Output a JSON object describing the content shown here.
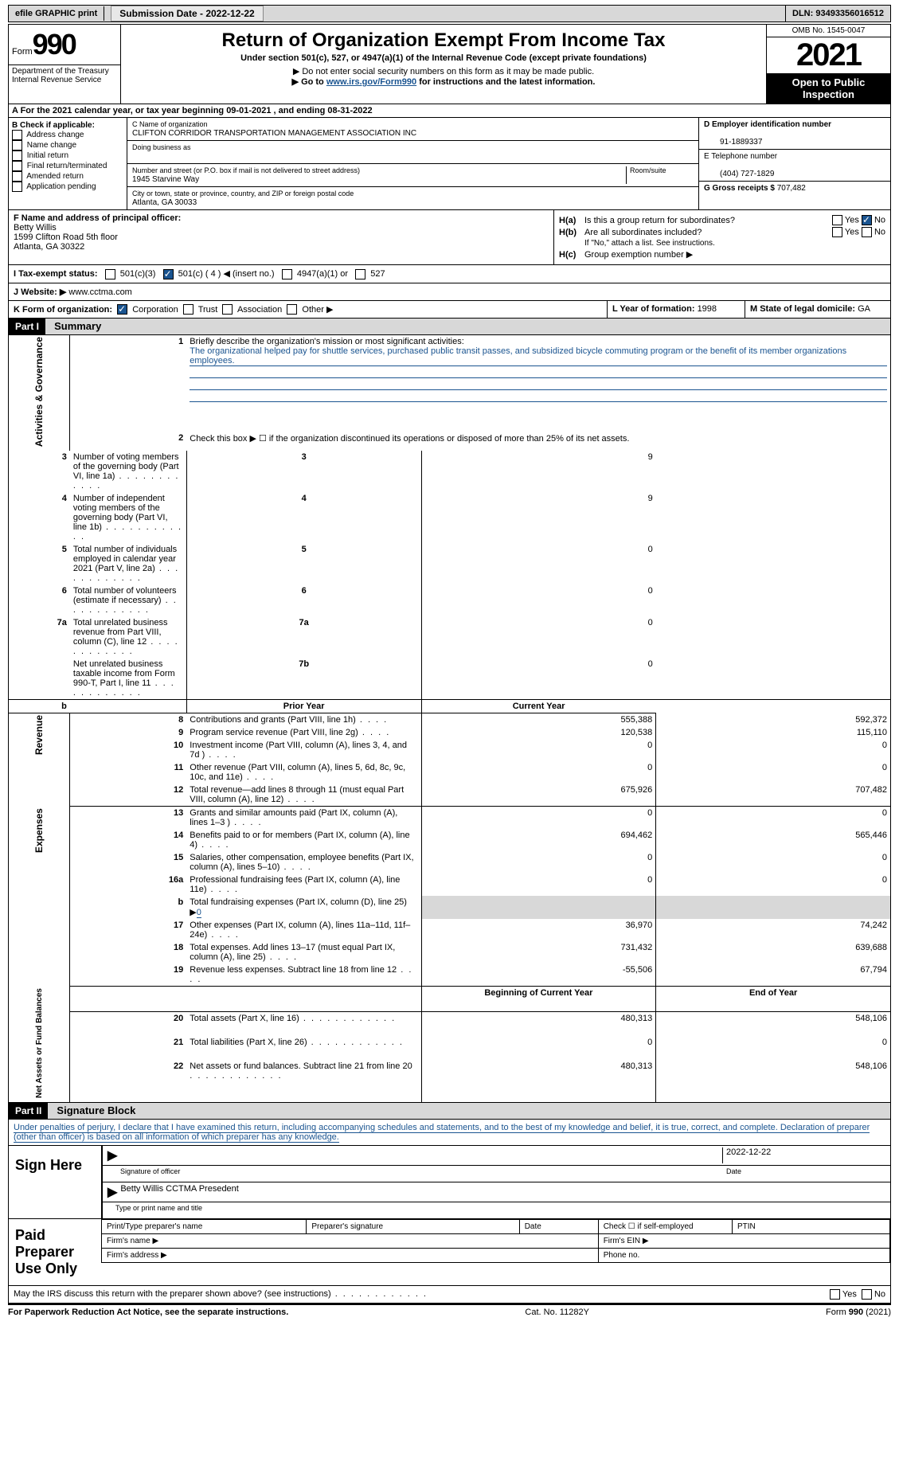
{
  "topbar": {
    "efile": "efile GRAPHIC print",
    "submission_label": "Submission Date - ",
    "submission_date": "2022-12-22",
    "dln_label": "DLN: ",
    "dln": "93493356016512"
  },
  "header": {
    "form_label": "Form",
    "form_num": "990",
    "title": "Return of Organization Exempt From Income Tax",
    "subtitle": "Under section 501(c), 527, or 4947(a)(1) of the Internal Revenue Code (except private foundations)",
    "note1": "▶ Do not enter social security numbers on this form as it may be made public.",
    "note2_pre": "▶ Go to ",
    "note2_link": "www.irs.gov/Form990",
    "note2_post": " for instructions and the latest information.",
    "dept": "Department of the Treasury\nInternal Revenue Service",
    "omb": "OMB No. 1545-0047",
    "year": "2021",
    "open": "Open to Public Inspection"
  },
  "row_a": "A  For the 2021 calendar year, or tax year beginning 09-01-2021    , and ending 08-31-2022",
  "col_b": {
    "header": "B Check if applicable:",
    "items": [
      "Address change",
      "Name change",
      "Initial return",
      "Final return/terminated",
      "Amended return",
      "Application pending"
    ]
  },
  "col_c": {
    "name_label": "C Name of organization",
    "name": "CLIFTON CORRIDOR TRANSPORTATION MANAGEMENT ASSOCIATION INC",
    "dba_label": "Doing business as",
    "addr_label": "Number and street (or P.O. box if mail is not delivered to street address)",
    "room_label": "Room/suite",
    "addr": "1945 Starvine Way",
    "city_label": "City or town, state or province, country, and ZIP or foreign postal code",
    "city": "Atlanta, GA   30033"
  },
  "col_d": {
    "ein_label": "D Employer identification number",
    "ein": "91-1889337",
    "phone_label": "E Telephone number",
    "phone": "(404) 727-1829",
    "gross_label": "G Gross receipts $ ",
    "gross": "707,482"
  },
  "row_f": {
    "label": "F  Name and address of principal officer:",
    "name": "Betty Willis",
    "addr1": "1599 Clifton Road 5th floor",
    "addr2": "Atlanta, GA  30322"
  },
  "row_h": {
    "ha": "Is this a group return for subordinates?",
    "hb": "Are all subordinates included?",
    "hb_note": "If \"No,\" attach a list. See instructions.",
    "hc": "Group exemption number ▶"
  },
  "row_i": {
    "label": "I   Tax-exempt status:",
    "opts": [
      "501(c)(3)",
      "501(c) ( 4 ) ◀ (insert no.)",
      "4947(a)(1) or",
      "527"
    ]
  },
  "row_j": {
    "label": "J   Website: ▶  ",
    "value": "www.cctma.com"
  },
  "row_k": {
    "label": "K Form of organization:",
    "opts": [
      "Corporation",
      "Trust",
      "Association",
      "Other ▶"
    ],
    "l_label": "L Year of formation: ",
    "l_val": "1998",
    "m_label": "M State of legal domicile: ",
    "m_val": "GA"
  },
  "parts": {
    "p1": {
      "num": "Part I",
      "title": "Summary"
    },
    "p2": {
      "num": "Part II",
      "title": "Signature Block"
    }
  },
  "summary": {
    "sections": [
      {
        "label": "Activities & Governance"
      },
      {
        "label": "Revenue"
      },
      {
        "label": "Expenses"
      },
      {
        "label": "Net Assets or Fund Balances"
      }
    ],
    "line1_label": "Briefly describe the organization's mission or most significant activities:",
    "line1_text": "The organizational helped pay for shuttle services, purchased public transit passes, and subsidized bicycle commuting program or the benefit of its member organizations employees.",
    "line2": "Check this box ▶ ☐  if the organization discontinued its operations or disposed of more than 25% of its net assets.",
    "rows_gov": [
      {
        "n": "3",
        "t": "Number of voting members of the governing body (Part VI, line 1a)",
        "box": "3",
        "v": "9"
      },
      {
        "n": "4",
        "t": "Number of independent voting members of the governing body (Part VI, line 1b)",
        "box": "4",
        "v": "9"
      },
      {
        "n": "5",
        "t": "Total number of individuals employed in calendar year 2021 (Part V, line 2a)",
        "box": "5",
        "v": "0"
      },
      {
        "n": "6",
        "t": "Total number of volunteers (estimate if necessary)",
        "box": "6",
        "v": "0"
      },
      {
        "n": "7a",
        "t": "Total unrelated business revenue from Part VIII, column (C), line 12",
        "box": "7a",
        "v": "0"
      },
      {
        "n": "",
        "t": "Net unrelated business taxable income from Form 990-T, Part I, line 11",
        "box": "7b",
        "v": "0"
      }
    ],
    "col_hdrs": {
      "prior": "Prior Year",
      "current": "Current Year",
      "boy": "Beginning of Current Year",
      "eoy": "End of Year"
    },
    "rows_rev": [
      {
        "n": "8",
        "t": "Contributions and grants (Part VIII, line 1h)",
        "p": "555,388",
        "c": "592,372"
      },
      {
        "n": "9",
        "t": "Program service revenue (Part VIII, line 2g)",
        "p": "120,538",
        "c": "115,110"
      },
      {
        "n": "10",
        "t": "Investment income (Part VIII, column (A), lines 3, 4, and 7d )",
        "p": "0",
        "c": "0"
      },
      {
        "n": "11",
        "t": "Other revenue (Part VIII, column (A), lines 5, 6d, 8c, 9c, 10c, and 11e)",
        "p": "0",
        "c": "0"
      },
      {
        "n": "12",
        "t": "Total revenue—add lines 8 through 11 (must equal Part VIII, column (A), line 12)",
        "p": "675,926",
        "c": "707,482"
      }
    ],
    "rows_exp": [
      {
        "n": "13",
        "t": "Grants and similar amounts paid (Part IX, column (A), lines 1–3 )",
        "p": "0",
        "c": "0"
      },
      {
        "n": "14",
        "t": "Benefits paid to or for members (Part IX, column (A), line 4)",
        "p": "694,462",
        "c": "565,446"
      },
      {
        "n": "15",
        "t": "Salaries, other compensation, employee benefits (Part IX, column (A), lines 5–10)",
        "p": "0",
        "c": "0"
      },
      {
        "n": "16a",
        "t": "Professional fundraising fees (Part IX, column (A), line 11e)",
        "p": "0",
        "c": "0"
      },
      {
        "n": "b",
        "t": "Total fundraising expenses (Part IX, column (D), line 25) ▶",
        "val0": "0",
        "gray": true
      },
      {
        "n": "17",
        "t": "Other expenses (Part IX, column (A), lines 11a–11d, 11f–24e)",
        "p": "36,970",
        "c": "74,242"
      },
      {
        "n": "18",
        "t": "Total expenses. Add lines 13–17 (must equal Part IX, column (A), line 25)",
        "p": "731,432",
        "c": "639,688"
      },
      {
        "n": "19",
        "t": "Revenue less expenses. Subtract line 18 from line 12",
        "p": "-55,506",
        "c": "67,794"
      }
    ],
    "rows_net": [
      {
        "n": "20",
        "t": "Total assets (Part X, line 16)",
        "p": "480,313",
        "c": "548,106"
      },
      {
        "n": "21",
        "t": "Total liabilities (Part X, line 26)",
        "p": "0",
        "c": "0"
      },
      {
        "n": "22",
        "t": "Net assets or fund balances. Subtract line 21 from line 20",
        "p": "480,313",
        "c": "548,106"
      }
    ]
  },
  "sig": {
    "penalty": "Under penalties of perjury, I declare that I have examined this return, including accompanying schedules and statements, and to the best of my knowledge and belief, it is true, correct, and complete. Declaration of preparer (other than officer) is based on all information of which preparer has any knowledge.",
    "sign_here": "Sign Here",
    "sig_officer": "Signature of officer",
    "date": "2022-12-22",
    "date_label": "Date",
    "name_title": "Betty Willis  CCTMA Presedent",
    "name_title_label": "Type or print name and title",
    "paid": "Paid Preparer Use Only",
    "prep_name": "Print/Type preparer's name",
    "prep_sig": "Preparer's signature",
    "prep_date": "Date",
    "check_self": "Check ☐ if self-employed",
    "ptin": "PTIN",
    "firm_name": "Firm's name   ▶",
    "firm_ein": "Firm's EIN ▶",
    "firm_addr": "Firm's address ▶",
    "phone": "Phone no."
  },
  "footer": {
    "discuss": "May the IRS discuss this return with the preparer shown above? (see instructions)",
    "pra": "For Paperwork Reduction Act Notice, see the separate instructions.",
    "cat": "Cat. No. 11282Y",
    "formrev": "Form 990 (2021)"
  }
}
